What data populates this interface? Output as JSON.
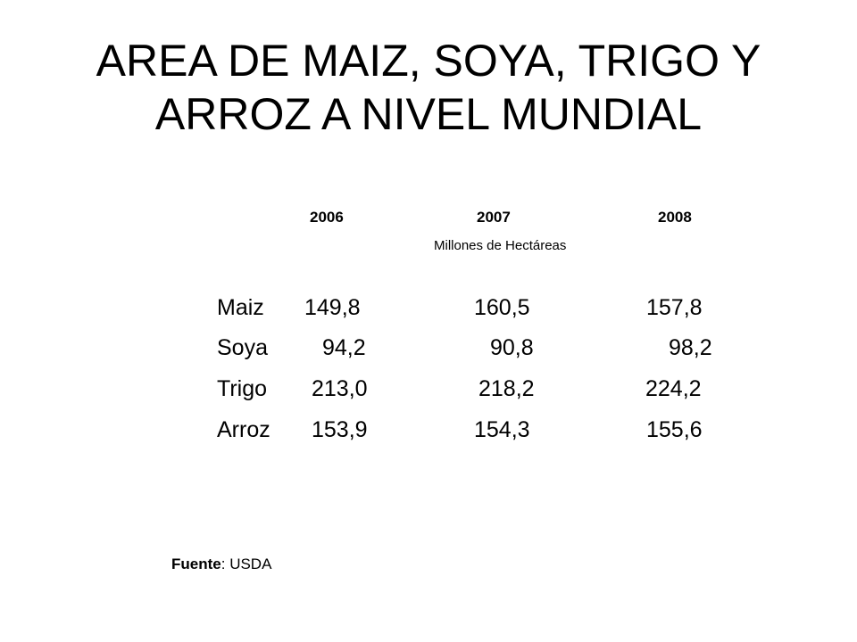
{
  "title": {
    "line1": "AREA DE MAIZ, SOYA, TRIGO Y",
    "line2": "ARROZ A NIVEL MUNDIAL"
  },
  "table": {
    "years": [
      "2006",
      "2007",
      "2008"
    ],
    "unit": "Millones de Hectáreas",
    "rows": [
      {
        "name": "Maiz",
        "v2006": "149,8",
        "v2007": "160,5",
        "v2008": "157,8"
      },
      {
        "name": "Soya",
        "v2006": "94,2",
        "v2007": "90,8",
        "v2008": "98,2"
      },
      {
        "name": "Trigo",
        "v2006": "213,0",
        "v2007": "218,2",
        "v2008": "224,2"
      },
      {
        "name": "Arroz",
        "v2006": "153,9",
        "v2007": "154,3",
        "v2008": "155,6"
      }
    ]
  },
  "source": {
    "label": "Fuente",
    "separator": ": ",
    "value": "USDA"
  }
}
